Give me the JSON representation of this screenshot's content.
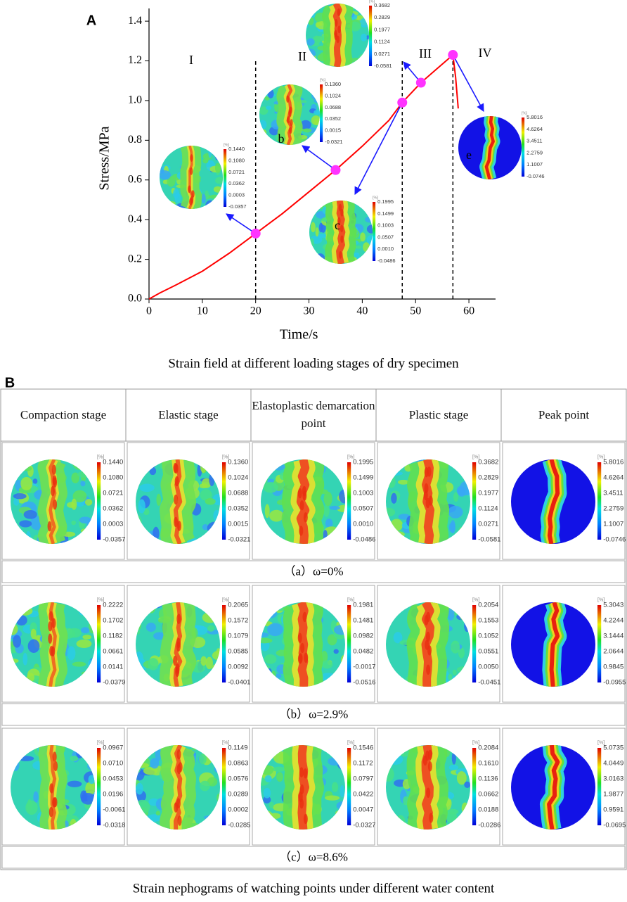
{
  "panel_labels": [
    "A",
    "B"
  ],
  "chart_data": {
    "type": "line",
    "xlabel": "Time/s",
    "ylabel": "Stress/MPa",
    "caption": "Strain field at different loading stages of dry specimen",
    "x": [
      0,
      2,
      5,
      10,
      15,
      20,
      25,
      30,
      35,
      40,
      45,
      47.5,
      51,
      54,
      57,
      57.5,
      58
    ],
    "values": [
      0,
      0.03,
      0.07,
      0.14,
      0.23,
      0.33,
      0.43,
      0.54,
      0.65,
      0.77,
      0.9,
      0.99,
      1.09,
      1.16,
      1.23,
      1.12,
      0.96
    ],
    "color": "#ff0000",
    "markers": {
      "x": [
        20,
        35,
        47.5,
        51,
        57
      ],
      "values": [
        0.33,
        0.65,
        0.99,
        1.09,
        1.23
      ],
      "color": "#ff33ff"
    },
    "stage_boundaries": [
      20,
      47.5,
      57
    ],
    "stages": [
      "I",
      "II",
      "III",
      "IV"
    ],
    "inset_labels": [
      "b",
      "c",
      "e"
    ],
    "xlim": [
      0,
      65
    ],
    "xticks": [
      0,
      10,
      20,
      30,
      40,
      50,
      60
    ],
    "ylim": [
      0,
      1.45
    ],
    "yticks": [
      {
        "value": 0,
        "label": "0.0"
      },
      0.2,
      0.4,
      0.6,
      0.8,
      {
        "value": 1,
        "label": "1.0"
      },
      1.2,
      1.4
    ]
  },
  "panel_b": {
    "headers": [
      "Compaction stage",
      "Elastic stage",
      "Elastoplastic demarcation point",
      "Plastic stage",
      "Peak point"
    ],
    "unit": "[%]",
    "rows": [
      {
        "caption": "（a）ω=0%",
        "colorbars": [
          [
            "0.1440",
            "0.1080",
            "0.0721",
            "0.0362",
            "0.0003",
            "-0.0357"
          ],
          [
            "0.1360",
            "0.1024",
            "0.0688",
            "0.0352",
            "0.0015",
            "-0.0321"
          ],
          [
            "0.1995",
            "0.1499",
            "0.1003",
            "0.0507",
            "0.0010",
            "-0.0486"
          ],
          [
            "0.3682",
            "0.2829",
            "0.1977",
            "0.1124",
            "0.0271",
            "-0.0581"
          ],
          [
            "5.8016",
            "4.6264",
            "3.4511",
            "2.2759",
            "1.1007",
            "-0.0746"
          ]
        ]
      },
      {
        "caption": "（b）ω=2.9%",
        "colorbars": [
          [
            "0.2222",
            "0.1702",
            "0.1182",
            "0.0661",
            "0.0141",
            "-0.0379"
          ],
          [
            "0.2065",
            "0.1572",
            "0.1079",
            "0.0585",
            "0.0092",
            "-0.0401"
          ],
          [
            "0.1981",
            "0.1481",
            "0.0982",
            "0.0482",
            "-0.0017",
            "-0.0516"
          ],
          [
            "0.2054",
            "0.1553",
            "0.1052",
            "0.0551",
            "0.0050",
            "-0.0451"
          ],
          [
            "5.3043",
            "4.2244",
            "3.1444",
            "2.0644",
            "0.9845",
            "-0.0955"
          ]
        ]
      },
      {
        "caption": "（c）ω=8.6%",
        "colorbars": [
          [
            "0.0967",
            "0.0710",
            "0.0453",
            "0.0196",
            "-0.0061",
            "-0.0318"
          ],
          [
            "0.1149",
            "0.0863",
            "0.0576",
            "0.0289",
            "0.0002",
            "-0.0285"
          ],
          [
            "0.1546",
            "0.1172",
            "0.0797",
            "0.0422",
            "0.0047",
            "-0.0327"
          ],
          [
            "0.2084",
            "0.1610",
            "0.1136",
            "0.0662",
            "0.0188",
            "-0.0286"
          ],
          [
            "5.0735",
            "4.0449",
            "3.0163",
            "1.9877",
            "0.9591",
            "-0.0695"
          ]
        ]
      }
    ],
    "caption": "Strain nephograms of watching points under different water content"
  }
}
